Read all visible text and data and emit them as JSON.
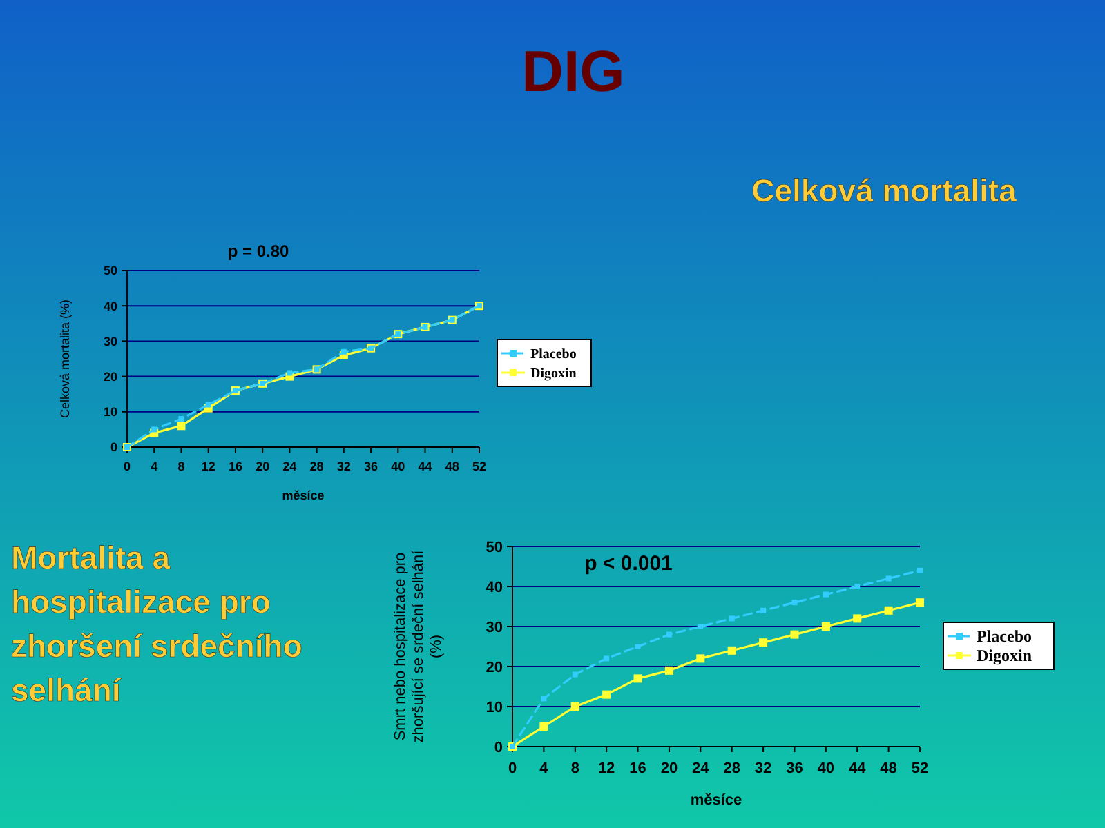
{
  "chart_data": [
    {
      "type": "other",
      "title": "DIG",
      "subtitle": "Celková mortalita"
    },
    {
      "type": "line",
      "xlabel": "měsíce",
      "ylabel": "Celková mortalita (%)",
      "annotations": [
        "p  = 0.80"
      ],
      "x": [
        0,
        4,
        8,
        12,
        16,
        20,
        24,
        28,
        32,
        36,
        40,
        44,
        48,
        52
      ],
      "xlim": [
        0,
        52
      ],
      "xticks": [
        0,
        4,
        8,
        12,
        16,
        20,
        24,
        28,
        32,
        36,
        40,
        44,
        48,
        52
      ],
      "ylim": [
        0,
        50
      ],
      "yticks": [
        0,
        10,
        20,
        30,
        40,
        50
      ],
      "grid": "y",
      "legend": "right",
      "marker": "square",
      "series": [
        {
          "name": "Placebo",
          "color": "#33ccff",
          "line_style": "dashed",
          "values": [
            0,
            5,
            8,
            12,
            16,
            18,
            21,
            22,
            27,
            28,
            32,
            34,
            36,
            40
          ]
        },
        {
          "name": "Digoxin",
          "color": "#ffff33",
          "line_style": "solid",
          "values": [
            0,
            4,
            6,
            11,
            16,
            18,
            20,
            22,
            26,
            28,
            32,
            34,
            36,
            40
          ]
        }
      ]
    },
    {
      "type": "line",
      "title": "Mortalita a hospitalizace pro zhoršení srdečního selhání",
      "xlabel": "měsíce",
      "ylabel": "Smrt nebo hospitalizace pro zhoršující se srdeční selhání (%)",
      "annotations": [
        "p  < 0.001"
      ],
      "x": [
        0,
        4,
        8,
        12,
        16,
        20,
        24,
        28,
        32,
        36,
        40,
        44,
        48,
        52
      ],
      "xlim": [
        0,
        52
      ],
      "xticks": [
        0,
        4,
        8,
        12,
        16,
        20,
        24,
        28,
        32,
        36,
        40,
        44,
        48,
        52
      ],
      "ylim": [
        0,
        50
      ],
      "yticks": [
        0,
        10,
        20,
        30,
        40,
        50
      ],
      "grid": "y",
      "legend": "right",
      "marker": "square",
      "series": [
        {
          "name": "Placebo",
          "color": "#33ccff",
          "line_style": "dashed",
          "values": [
            0,
            12,
            18,
            22,
            25,
            28,
            30,
            32,
            34,
            36,
            38,
            40,
            42,
            44
          ]
        },
        {
          "name": "Digoxin",
          "color": "#ffff33",
          "line_style": "solid",
          "values": [
            0,
            5,
            10,
            13,
            17,
            19,
            22,
            24,
            26,
            28,
            30,
            32,
            34,
            36
          ]
        }
      ]
    }
  ]
}
